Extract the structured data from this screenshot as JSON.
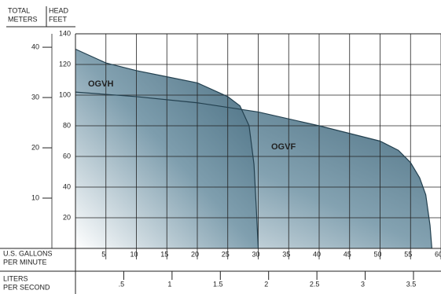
{
  "chart_data": {
    "type": "line",
    "y_header": [
      "TOTAL",
      "METERS"
    ],
    "y2_header": [
      "HEAD",
      "FEET"
    ],
    "x_label": [
      "U.S. GALLONS",
      "PER MINUTE"
    ],
    "x2_label": [
      "LITERS",
      "PER SECOND"
    ],
    "xlim": [
      0,
      60
    ],
    "xticks": [
      5,
      10,
      15,
      20,
      25,
      30,
      35,
      40,
      45,
      50,
      55,
      60
    ],
    "x2lim": [
      0,
      3.785
    ],
    "x2ticks": [
      {
        "value": 0.5,
        "label": ".5"
      },
      1,
      1.5,
      2,
      2.5,
      3,
      3.5
    ],
    "ylim": [
      0,
      140
    ],
    "yticks": [
      20,
      40,
      60,
      80,
      100,
      120,
      140
    ],
    "y2lim": [
      0,
      42.67
    ],
    "y2ticks": [
      10,
      20,
      30,
      40
    ],
    "grid": true,
    "series": [
      {
        "name": "OGVF",
        "color": "#456e82",
        "x": [
          0,
          10,
          20,
          30,
          40,
          50,
          53,
          55,
          56.5,
          57.5,
          58.2,
          58.5
        ],
        "values": [
          102,
          99,
          95,
          89,
          80,
          70,
          64,
          56,
          46,
          35,
          15,
          0
        ]
      },
      {
        "name": "OGVH",
        "color": "#456e82",
        "x": [
          0,
          5,
          10,
          15,
          20,
          25,
          27,
          28.5,
          29.3,
          29.7,
          30
        ],
        "values": [
          130,
          121,
          116,
          112,
          108,
          99,
          93,
          80,
          55,
          25,
          0
        ]
      }
    ]
  }
}
